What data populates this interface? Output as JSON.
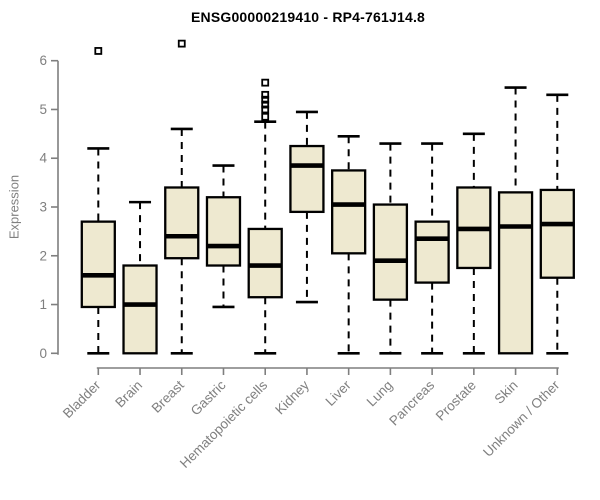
{
  "chart_data": {
    "type": "boxplot",
    "title": "ENSG00000219410 - RP4-761J14.8",
    "ylabel": "Expression",
    "xlabel": "",
    "ylim": [
      0,
      6
    ],
    "yticks": [
      "0",
      "1",
      "2",
      "3",
      "4",
      "5",
      "6"
    ],
    "grid": "off",
    "legend": "none",
    "colors": {
      "box_fill": "#EEE9D0",
      "box_stroke": "#000000",
      "median": "#000000",
      "whisker": "#000000",
      "outlier": "#000000",
      "axis": "#7f7f7f",
      "tick_text": "#7f7f7f",
      "title_text": "#000000"
    },
    "categories": [
      "Bladder",
      "Brain",
      "Breast",
      "Gastric",
      "Hematopoietic cells",
      "Kidney",
      "Liver",
      "Lung",
      "Pancreas",
      "Prostate",
      "Skin",
      "Unknown / Other"
    ],
    "series": [
      {
        "category": "Bladder",
        "whisker_low": 0.0,
        "q1": 0.95,
        "median": 1.6,
        "q3": 2.7,
        "whisker_high": 4.2,
        "outliers": [
          6.2
        ]
      },
      {
        "category": "Brain",
        "whisker_low": 0.0,
        "q1": 0.0,
        "median": 1.0,
        "q3": 1.8,
        "whisker_high": 3.1,
        "outliers": []
      },
      {
        "category": "Breast",
        "whisker_low": 0.0,
        "q1": 1.95,
        "median": 2.4,
        "q3": 3.4,
        "whisker_high": 4.6,
        "outliers": [
          6.35
        ]
      },
      {
        "category": "Gastric",
        "whisker_low": 0.95,
        "q1": 1.8,
        "median": 2.2,
        "q3": 3.2,
        "whisker_high": 3.85,
        "outliers": []
      },
      {
        "category": "Hematopoietic cells",
        "whisker_low": 0.0,
        "q1": 1.15,
        "median": 1.8,
        "q3": 2.55,
        "whisker_high": 4.75,
        "outliers": [
          5.55,
          5.3,
          5.2,
          5.1,
          5.0,
          4.85
        ]
      },
      {
        "category": "Kidney",
        "whisker_low": 1.05,
        "q1": 2.9,
        "median": 3.85,
        "q3": 4.25,
        "whisker_high": 4.95,
        "outliers": []
      },
      {
        "category": "Liver",
        "whisker_low": 0.0,
        "q1": 2.05,
        "median": 3.05,
        "q3": 3.75,
        "whisker_high": 4.45,
        "outliers": []
      },
      {
        "category": "Lung",
        "whisker_low": 0.0,
        "q1": 1.1,
        "median": 1.9,
        "q3": 3.05,
        "whisker_high": 4.3,
        "outliers": []
      },
      {
        "category": "Pancreas",
        "whisker_low": 0.0,
        "q1": 1.45,
        "median": 2.35,
        "q3": 2.7,
        "whisker_high": 4.3,
        "outliers": []
      },
      {
        "category": "Prostate",
        "whisker_low": 0.0,
        "q1": 1.75,
        "median": 2.55,
        "q3": 3.4,
        "whisker_high": 4.5,
        "outliers": []
      },
      {
        "category": "Skin",
        "whisker_low": 0.0,
        "q1": 0.0,
        "median": 2.6,
        "q3": 3.3,
        "whisker_high": 5.45,
        "outliers": []
      },
      {
        "category": "Unknown / Other",
        "whisker_low": 0.0,
        "q1": 1.55,
        "median": 2.65,
        "q3": 3.35,
        "whisker_high": 5.3,
        "outliers": []
      }
    ]
  }
}
